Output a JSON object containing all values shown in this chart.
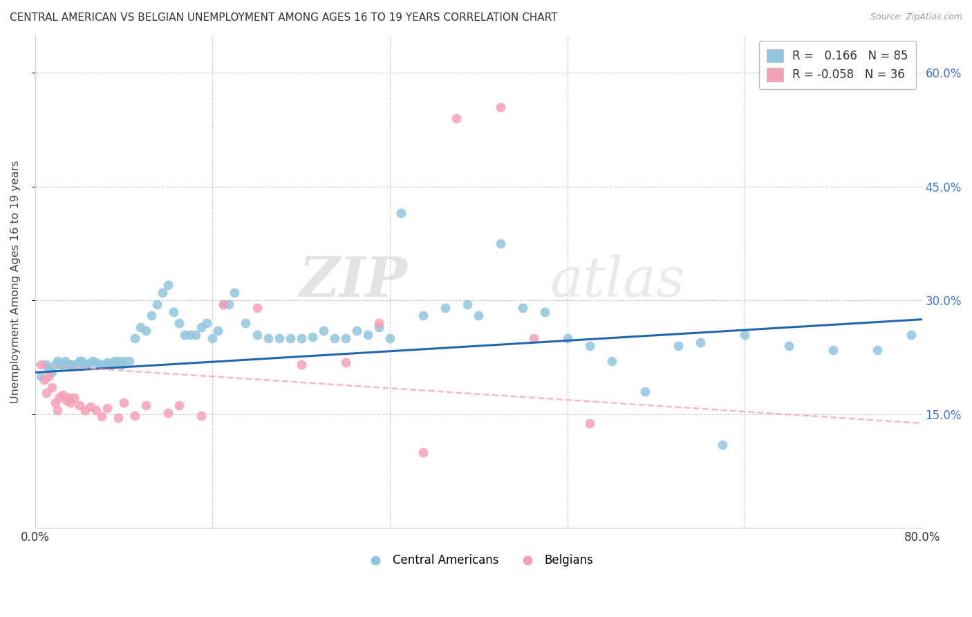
{
  "title": "CENTRAL AMERICAN VS BELGIAN UNEMPLOYMENT AMONG AGES 16 TO 19 YEARS CORRELATION CHART",
  "source": "Source: ZipAtlas.com",
  "ylabel": "Unemployment Among Ages 16 to 19 years",
  "xlim": [
    0.0,
    0.8
  ],
  "ylim": [
    0.0,
    0.65
  ],
  "yticks": [
    0.15,
    0.3,
    0.45,
    0.6
  ],
  "ytick_labels": [
    "15.0%",
    "30.0%",
    "45.0%",
    "60.0%"
  ],
  "blue_r": 0.166,
  "blue_n": 85,
  "pink_r": -0.058,
  "pink_n": 36,
  "blue_color": "#92C5DE",
  "pink_color": "#F4A0B8",
  "blue_line_color": "#2166AC",
  "pink_line_color": "#F4A0B8",
  "watermark_zip": "ZIP",
  "watermark_atlas": "atlas",
  "legend_blue_label": "Central Americans",
  "legend_pink_label": "Belgians",
  "blue_trend_y_start": 0.205,
  "blue_trend_y_end": 0.275,
  "pink_trend_y_start": 0.215,
  "pink_trend_y_end": 0.138,
  "blue_scatter_x": [
    0.005,
    0.01,
    0.012,
    0.015,
    0.018,
    0.02,
    0.022,
    0.025,
    0.027,
    0.03,
    0.03,
    0.032,
    0.035,
    0.038,
    0.04,
    0.042,
    0.045,
    0.047,
    0.05,
    0.052,
    0.055,
    0.058,
    0.06,
    0.062,
    0.065,
    0.068,
    0.07,
    0.072,
    0.075,
    0.078,
    0.08,
    0.085,
    0.09,
    0.095,
    0.1,
    0.105,
    0.11,
    0.115,
    0.12,
    0.125,
    0.13,
    0.135,
    0.14,
    0.145,
    0.15,
    0.155,
    0.16,
    0.165,
    0.17,
    0.175,
    0.18,
    0.19,
    0.2,
    0.21,
    0.22,
    0.23,
    0.24,
    0.25,
    0.26,
    0.27,
    0.28,
    0.29,
    0.3,
    0.31,
    0.32,
    0.33,
    0.35,
    0.37,
    0.39,
    0.4,
    0.42,
    0.44,
    0.46,
    0.48,
    0.5,
    0.52,
    0.55,
    0.58,
    0.6,
    0.62,
    0.64,
    0.68,
    0.72,
    0.76,
    0.79
  ],
  "blue_scatter_y": [
    0.2,
    0.215,
    0.21,
    0.205,
    0.215,
    0.22,
    0.215,
    0.215,
    0.22,
    0.215,
    0.215,
    0.215,
    0.215,
    0.215,
    0.22,
    0.22,
    0.215,
    0.215,
    0.218,
    0.22,
    0.218,
    0.215,
    0.215,
    0.215,
    0.218,
    0.215,
    0.218,
    0.22,
    0.22,
    0.215,
    0.22,
    0.22,
    0.25,
    0.265,
    0.26,
    0.28,
    0.295,
    0.31,
    0.32,
    0.285,
    0.27,
    0.255,
    0.255,
    0.255,
    0.265,
    0.27,
    0.25,
    0.26,
    0.295,
    0.295,
    0.31,
    0.27,
    0.255,
    0.25,
    0.25,
    0.25,
    0.25,
    0.252,
    0.26,
    0.25,
    0.25,
    0.26,
    0.255,
    0.265,
    0.25,
    0.415,
    0.28,
    0.29,
    0.295,
    0.28,
    0.375,
    0.29,
    0.285,
    0.25,
    0.24,
    0.22,
    0.18,
    0.24,
    0.245,
    0.11,
    0.255,
    0.24,
    0.235,
    0.235,
    0.255
  ],
  "pink_scatter_x": [
    0.005,
    0.008,
    0.01,
    0.012,
    0.015,
    0.018,
    0.02,
    0.022,
    0.025,
    0.028,
    0.03,
    0.032,
    0.035,
    0.04,
    0.045,
    0.05,
    0.055,
    0.06,
    0.065,
    0.075,
    0.08,
    0.09,
    0.1,
    0.12,
    0.13,
    0.15,
    0.17,
    0.2,
    0.24,
    0.28,
    0.31,
    0.35,
    0.38,
    0.42,
    0.45,
    0.5
  ],
  "pink_scatter_y": [
    0.215,
    0.195,
    0.178,
    0.2,
    0.185,
    0.165,
    0.155,
    0.173,
    0.175,
    0.168,
    0.172,
    0.165,
    0.172,
    0.162,
    0.155,
    0.16,
    0.155,
    0.147,
    0.158,
    0.145,
    0.165,
    0.148,
    0.162,
    0.152,
    0.162,
    0.148,
    0.295,
    0.29,
    0.215,
    0.218,
    0.27,
    0.1,
    0.54,
    0.555,
    0.25,
    0.138
  ]
}
